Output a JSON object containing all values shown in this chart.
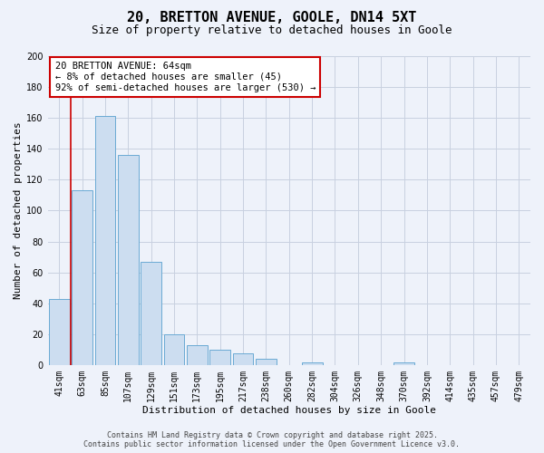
{
  "title": "20, BRETTON AVENUE, GOOLE, DN14 5XT",
  "subtitle": "Size of property relative to detached houses in Goole",
  "xlabel": "Distribution of detached houses by size in Goole",
  "ylabel": "Number of detached properties",
  "bar_labels": [
    "41sqm",
    "63sqm",
    "85sqm",
    "107sqm",
    "129sqm",
    "151sqm",
    "173sqm",
    "195sqm",
    "217sqm",
    "238sqm",
    "260sqm",
    "282sqm",
    "304sqm",
    "326sqm",
    "348sqm",
    "370sqm",
    "392sqm",
    "414sqm",
    "435sqm",
    "457sqm",
    "479sqm"
  ],
  "bar_values": [
    43,
    113,
    161,
    136,
    67,
    20,
    13,
    10,
    8,
    4,
    0,
    2,
    0,
    0,
    0,
    2,
    0,
    0,
    0,
    0,
    0
  ],
  "bar_color": "#ccddf0",
  "bar_edge_color": "#6aaad4",
  "background_color": "#eef2fa",
  "grid_color": "#c8d0e0",
  "vline_x": 1,
  "vline_color": "#cc0000",
  "ylim": [
    0,
    200
  ],
  "yticks": [
    0,
    20,
    40,
    60,
    80,
    100,
    120,
    140,
    160,
    180,
    200
  ],
  "annotation_title": "20 BRETTON AVENUE: 64sqm",
  "annotation_line1": "← 8% of detached houses are smaller (45)",
  "annotation_line2": "92% of semi-detached houses are larger (530) →",
  "annotation_box_edge": "#cc0000",
  "footer_line1": "Contains HM Land Registry data © Crown copyright and database right 2025.",
  "footer_line2": "Contains public sector information licensed under the Open Government Licence v3.0.",
  "title_fontsize": 11,
  "subtitle_fontsize": 9,
  "axis_label_fontsize": 8,
  "tick_fontsize": 7,
  "annotation_fontsize": 7.5,
  "footer_fontsize": 6
}
